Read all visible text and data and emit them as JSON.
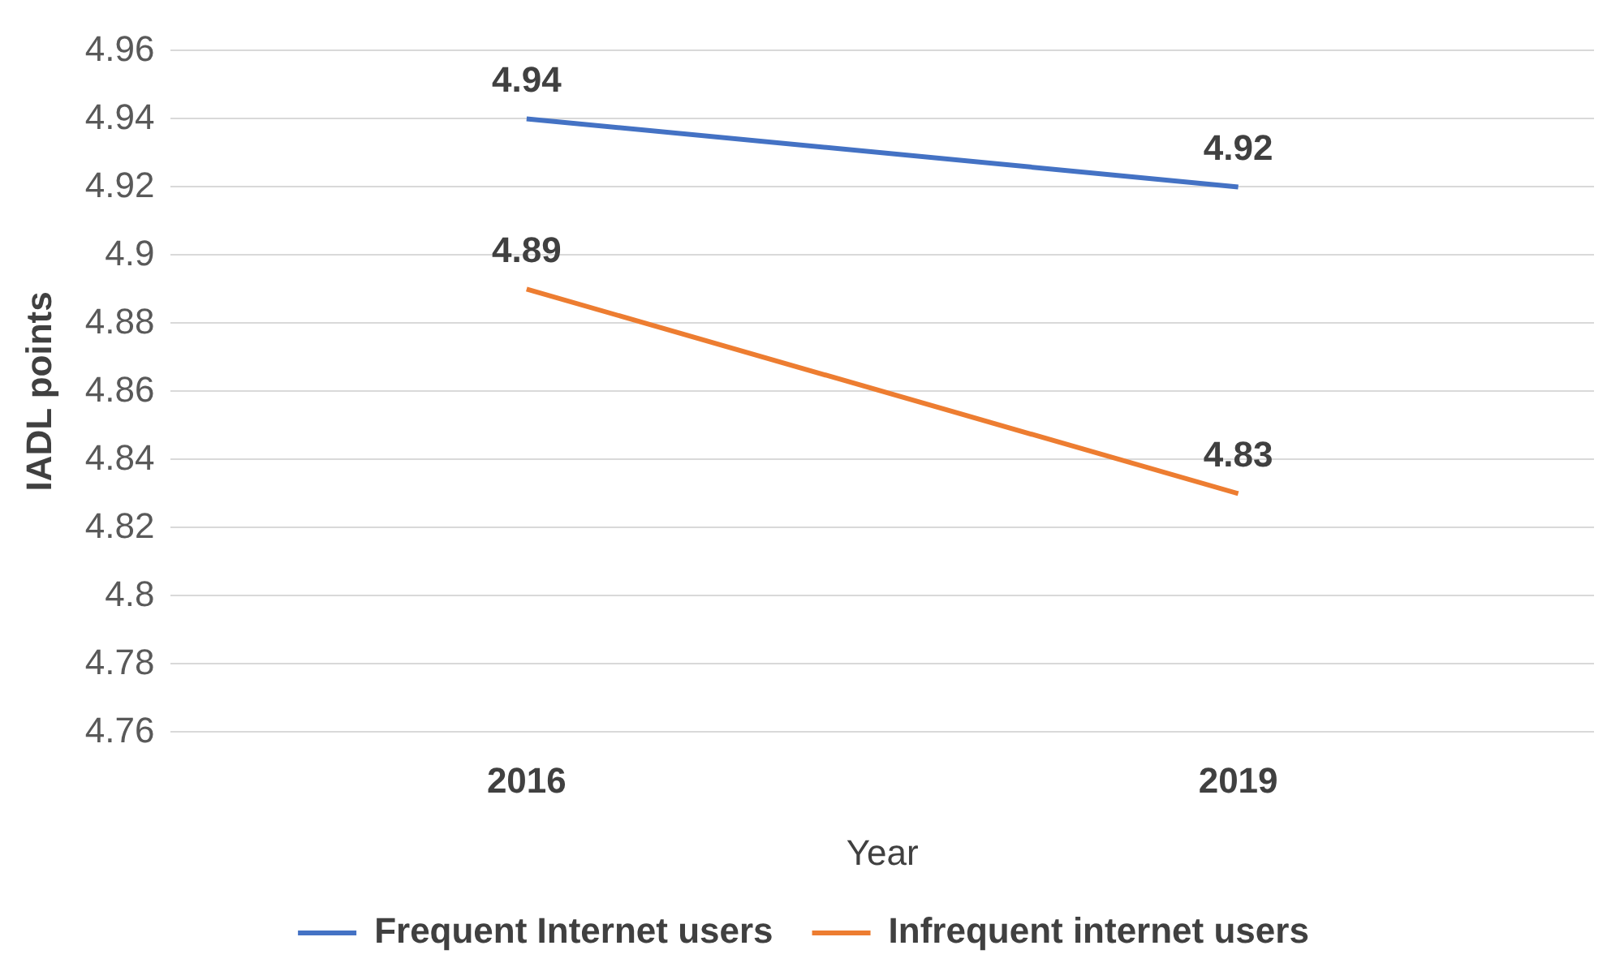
{
  "chart_data": {
    "type": "line",
    "xlabel": "Year",
    "ylabel": "IADL points",
    "categories": [
      "2016",
      "2019"
    ],
    "series": [
      {
        "name": "Frequent Internet users",
        "color": "#4472c4",
        "values": [
          4.94,
          4.92
        ]
      },
      {
        "name": "Infrequent internet users",
        "color": "#ed7d31",
        "values": [
          4.89,
          4.83
        ]
      }
    ],
    "ylim": [
      4.76,
      4.96
    ],
    "yticks": [
      4.76,
      4.78,
      4.8,
      4.82,
      4.84,
      4.86,
      4.88,
      4.9,
      4.92,
      4.94,
      4.96
    ],
    "grid": "y",
    "legend": "bottom",
    "data_labels": true,
    "marker": "none"
  }
}
